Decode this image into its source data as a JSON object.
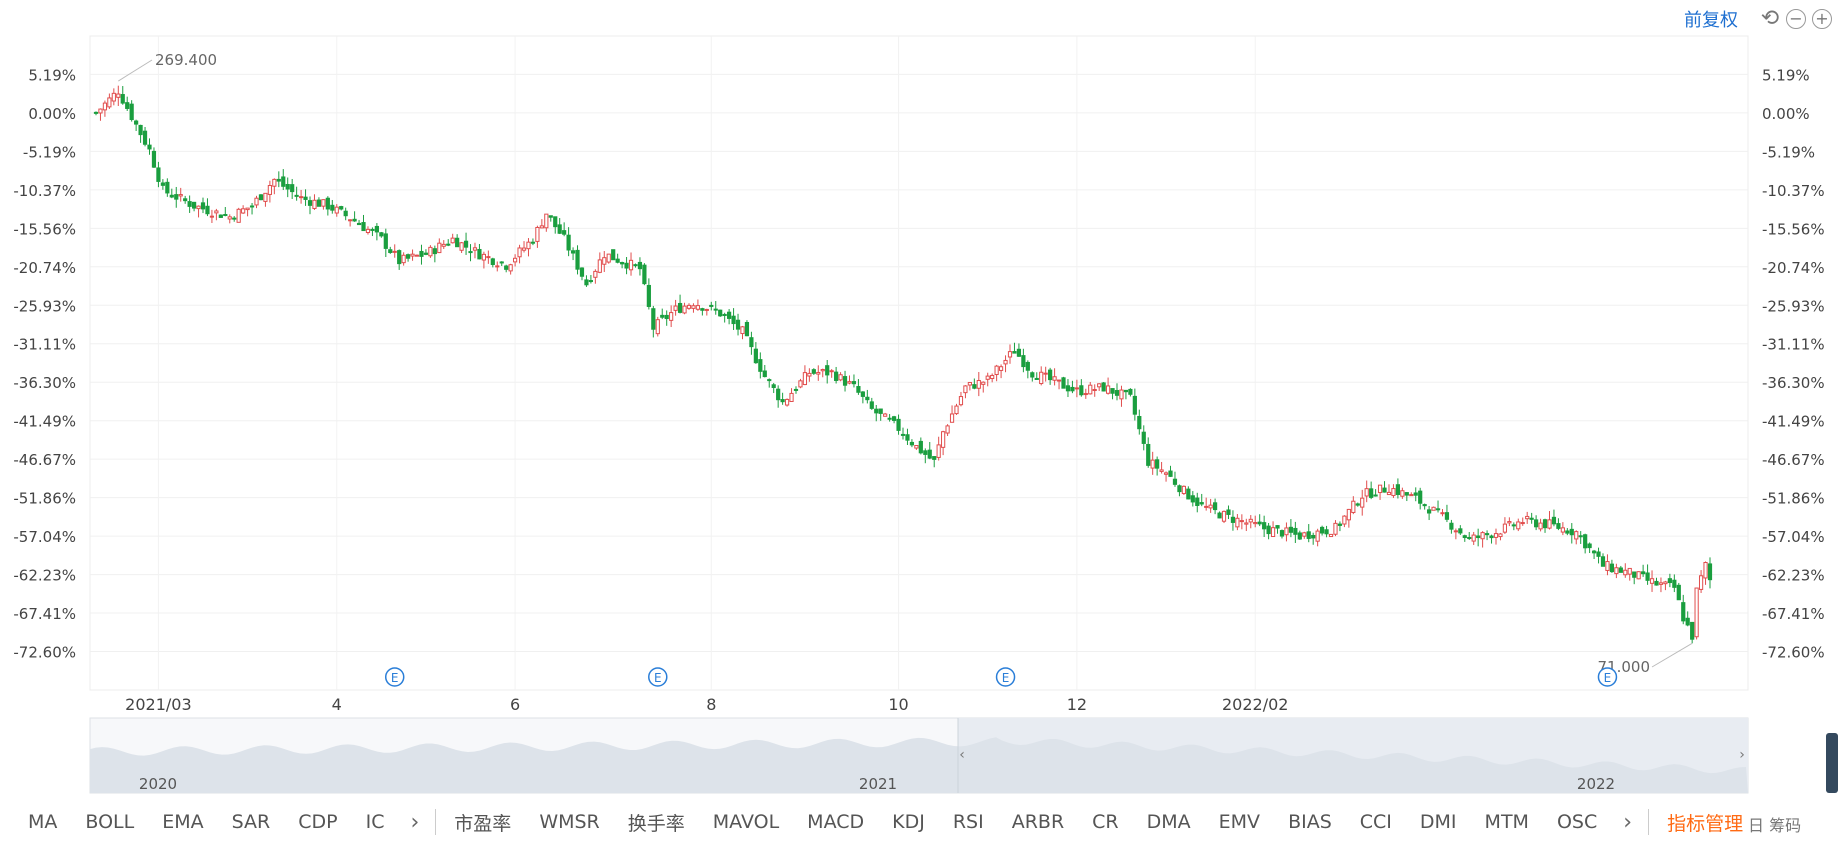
{
  "toolbar": {
    "adjust_label": "前复权",
    "undo_icon": "undo-icon",
    "zoom_out_icon": "zoom-out-icon",
    "zoom_in_icon": "zoom-in-icon",
    "accent_color": "#1e6fd0"
  },
  "indicator_tabs": [
    "MA",
    "BOLL",
    "EMA",
    "SAR",
    "CDP",
    "IC",
    "市盈率",
    "WMSR",
    "换手率",
    "MAVOL",
    "MACD",
    "KDJ",
    "RSI",
    "ARBR",
    "CR",
    "DMA",
    "EMV",
    "BIAS",
    "CCI",
    "DMI",
    "MTM",
    "OSC"
  ],
  "indicator_manage_label": "指标管理",
  "clipped_corner_text": "日 筹码",
  "chart_data": {
    "type": "candlestick",
    "y_axis_percent_ticks": [
      "5.19%",
      "0.00%",
      "-5.19%",
      "-10.37%",
      "-15.56%",
      "-20.74%",
      "-25.93%",
      "-31.11%",
      "-36.30%",
      "-41.49%",
      "-46.67%",
      "-51.86%",
      "-57.04%",
      "-62.23%",
      "-67.41%",
      "-72.60%"
    ],
    "y_range_percent": [
      -77.79,
      10.37
    ],
    "x_tick_labels": [
      "2021/03",
      "4",
      "6",
      "8",
      "10",
      "12",
      "2022/02"
    ],
    "max_label": "269.400",
    "min_label": "71.000",
    "event_marker": "E",
    "event_positions_trading_day": [
      67,
      126,
      204
    ],
    "up_color": "#e14d4d",
    "down_color": "#1a9e3f",
    "waypoints_percent": [
      [
        0,
        0
      ],
      [
        5,
        3
      ],
      [
        12,
        -5
      ],
      [
        15,
        -10.4
      ],
      [
        22,
        -12.5
      ],
      [
        30,
        -14
      ],
      [
        35,
        -12.5
      ],
      [
        40,
        -9
      ],
      [
        46,
        -11.5
      ],
      [
        52,
        -12.5
      ],
      [
        58,
        -14.5
      ],
      [
        64,
        -17
      ],
      [
        68,
        -20
      ],
      [
        74,
        -19
      ],
      [
        80,
        -17
      ],
      [
        86,
        -19
      ],
      [
        92,
        -20.5
      ],
      [
        98,
        -17
      ],
      [
        101,
        -13.5
      ],
      [
        105,
        -17
      ],
      [
        110,
        -23
      ],
      [
        114,
        -19
      ],
      [
        118,
        -20
      ],
      [
        122,
        -21
      ],
      [
        125,
        -29
      ],
      [
        130,
        -26.5
      ],
      [
        134,
        -25.5
      ],
      [
        140,
        -27
      ],
      [
        145,
        -29.5
      ],
      [
        150,
        -35.5
      ],
      [
        154,
        -39
      ],
      [
        160,
        -35
      ],
      [
        165,
        -35
      ],
      [
        170,
        -37
      ],
      [
        174,
        -40
      ],
      [
        180,
        -42.5
      ],
      [
        184,
        -45
      ],
      [
        188,
        -47
      ],
      [
        190,
        -43
      ],
      [
        195,
        -37
      ],
      [
        200,
        -36
      ],
      [
        206,
        -32
      ],
      [
        210,
        -35
      ],
      [
        214,
        -36
      ],
      [
        220,
        -37.5
      ],
      [
        226,
        -37
      ],
      [
        232,
        -38.5
      ],
      [
        236,
        -47
      ],
      [
        240,
        -48.5
      ],
      [
        244,
        -51
      ],
      [
        248,
        -53
      ],
      [
        254,
        -54.5
      ],
      [
        262,
        -56
      ],
      [
        270,
        -57
      ],
      [
        278,
        -56
      ],
      [
        284,
        -51.5
      ],
      [
        290,
        -50.5
      ],
      [
        296,
        -52
      ],
      [
        302,
        -54.5
      ],
      [
        308,
        -57.5
      ],
      [
        314,
        -56.5
      ],
      [
        320,
        -55
      ],
      [
        326,
        -55.5
      ],
      [
        332,
        -56.5
      ],
      [
        338,
        -61
      ],
      [
        344,
        -62
      ],
      [
        350,
        -63.5
      ],
      [
        354,
        -64
      ],
      [
        356,
        -68
      ],
      [
        358,
        -70.5
      ],
      [
        359,
        -64.5
      ],
      [
        361,
        -61
      ],
      [
        362,
        -63
      ]
    ],
    "navigator": {
      "year_labels": [
        "2020",
        "2021",
        "2022"
      ]
    }
  }
}
